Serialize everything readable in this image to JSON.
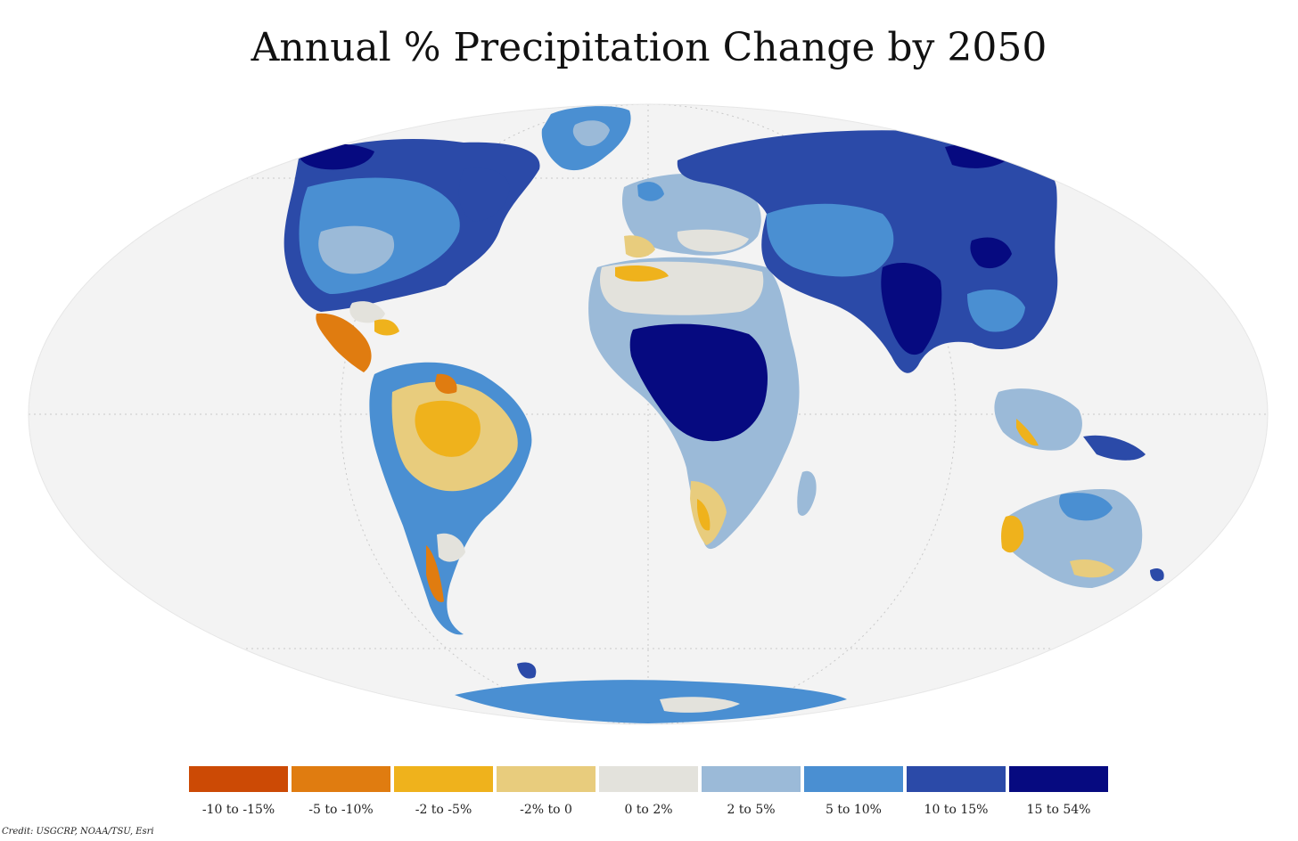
{
  "title": "Annual % Precipitation Change by 2050",
  "credit": "Credit: USGCRP, NOAA/TSU, Esri",
  "legend": [
    {
      "label": "-10 to -15%",
      "color": "#cc4a05"
    },
    {
      "label": "-5 to -10%",
      "color": "#e07c10"
    },
    {
      "label": "-2 to -5%",
      "color": "#efb21c"
    },
    {
      "label": "-2% to 0",
      "color": "#e8cc7d"
    },
    {
      "label": "0 to 2%",
      "color": "#e3e2dc"
    },
    {
      "label": "2 to 5%",
      "color": "#9bbad8"
    },
    {
      "label": "5 to 10%",
      "color": "#4a8fd2"
    },
    {
      "label": "10 to 15%",
      "color": "#2b4aa8"
    },
    {
      "label": "15 to 54%",
      "color": "#060a80"
    }
  ],
  "colors": {
    "ocean": "#f3f3f3",
    "graticule": "#c8c8c8"
  },
  "regions": [
    {
      "name": "greenland",
      "color": "#4a8fd2"
    },
    {
      "name": "north-america",
      "color": "#4a8fd2"
    },
    {
      "name": "central-america",
      "color": "#cc4a05"
    },
    {
      "name": "south-america",
      "color": "#e8cc7d"
    },
    {
      "name": "europe",
      "color": "#9bbad8"
    },
    {
      "name": "africa",
      "color": "#4a8fd2"
    },
    {
      "name": "asia",
      "color": "#2b4aa8"
    },
    {
      "name": "australia",
      "color": "#9bbad8"
    },
    {
      "name": "antarctica",
      "color": "#4a8fd2"
    }
  ]
}
